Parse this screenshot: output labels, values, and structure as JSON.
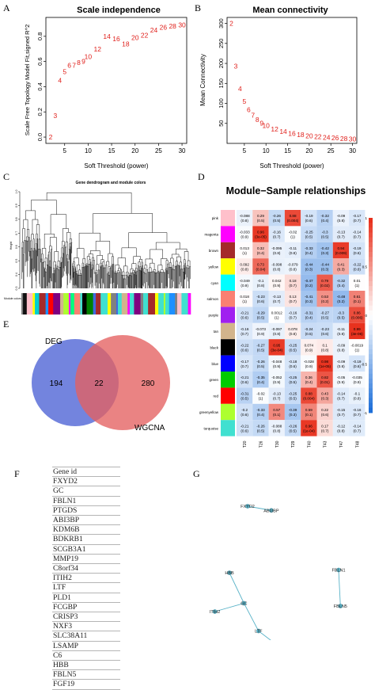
{
  "panel_letters": {
    "A": "A",
    "B": "B",
    "C": "C",
    "D": "D",
    "E": "E",
    "F": "F",
    "G": "G"
  },
  "chart_data": [
    {
      "panel": "A",
      "type": "scatter",
      "title": "Scale independence",
      "xlabel": "Soft Threshold (power)",
      "ylabel": "Scale Free Topology Model Fit,signed R^2",
      "xlim": [
        1,
        31
      ],
      "ylim": [
        -0.05,
        0.95
      ],
      "xticks": [
        5,
        10,
        15,
        20,
        25,
        30
      ],
      "yticks": [
        0.0,
        0.2,
        0.4,
        0.6,
        0.8
      ],
      "points": [
        {
          "x": 2,
          "y": 0.0,
          "label": "2"
        },
        {
          "x": 3,
          "y": 0.17,
          "label": "3"
        },
        {
          "x": 4,
          "y": 0.45,
          "label": "4"
        },
        {
          "x": 5,
          "y": 0.52,
          "label": "5"
        },
        {
          "x": 6,
          "y": 0.57,
          "label": "6"
        },
        {
          "x": 7,
          "y": 0.57,
          "label": "7"
        },
        {
          "x": 8,
          "y": 0.59,
          "label": "8"
        },
        {
          "x": 9,
          "y": 0.6,
          "label": "9"
        },
        {
          "x": 10,
          "y": 0.64,
          "label": "10"
        },
        {
          "x": 12,
          "y": 0.7,
          "label": "12"
        },
        {
          "x": 14,
          "y": 0.8,
          "label": "14"
        },
        {
          "x": 16,
          "y": 0.78,
          "label": "16"
        },
        {
          "x": 18,
          "y": 0.74,
          "label": "18"
        },
        {
          "x": 20,
          "y": 0.79,
          "label": "20"
        },
        {
          "x": 22,
          "y": 0.81,
          "label": "22"
        },
        {
          "x": 24,
          "y": 0.85,
          "label": "24"
        },
        {
          "x": 26,
          "y": 0.87,
          "label": "26"
        },
        {
          "x": 28,
          "y": 0.88,
          "label": "28"
        },
        {
          "x": 30,
          "y": 0.89,
          "label": "30"
        }
      ]
    },
    {
      "panel": "B",
      "type": "scatter",
      "title": "Mean connectivity",
      "xlabel": "Soft Threshold (power)",
      "ylabel": "Mean Connectivity",
      "xlim": [
        1,
        31
      ],
      "ylim": [
        0,
        315
      ],
      "xticks": [
        5,
        10,
        15,
        20,
        25,
        30
      ],
      "yticks": [
        50,
        100,
        150,
        200,
        250,
        300
      ],
      "points": [
        {
          "x": 2,
          "y": 300,
          "label": "2"
        },
        {
          "x": 3,
          "y": 193,
          "label": "3"
        },
        {
          "x": 4,
          "y": 137,
          "label": "4"
        },
        {
          "x": 5,
          "y": 105,
          "label": "5"
        },
        {
          "x": 6,
          "y": 84,
          "label": "6"
        },
        {
          "x": 7,
          "y": 70,
          "label": "7"
        },
        {
          "x": 8,
          "y": 59,
          "label": "8"
        },
        {
          "x": 9,
          "y": 51,
          "label": "9"
        },
        {
          "x": 10,
          "y": 45,
          "label": "10"
        },
        {
          "x": 12,
          "y": 36,
          "label": "12"
        },
        {
          "x": 14,
          "y": 30,
          "label": "14"
        },
        {
          "x": 16,
          "y": 25,
          "label": "16"
        },
        {
          "x": 18,
          "y": 22,
          "label": "18"
        },
        {
          "x": 20,
          "y": 19,
          "label": "20"
        },
        {
          "x": 22,
          "y": 17,
          "label": "22"
        },
        {
          "x": 24,
          "y": 15,
          "label": "24"
        },
        {
          "x": 26,
          "y": 14,
          "label": "26"
        },
        {
          "x": 28,
          "y": 12,
          "label": "28"
        },
        {
          "x": 30,
          "y": 11,
          "label": "30"
        }
      ]
    },
    {
      "panel": "C",
      "type": "dendrogram",
      "title": "Gene dendrogram and module colors",
      "ylabel": "Height",
      "color_bar_label": "Module colors",
      "yticks": [
        0.3,
        0.4,
        0.5,
        0.6,
        0.7,
        0.8,
        0.9,
        1.0
      ],
      "module_color_bar": [
        "#808080",
        "#111111",
        "#ffc0cb",
        "#ffff00",
        "#00ced1",
        "#a52a2a",
        "#1e90ff",
        "#ff0000",
        "#800080",
        "#d2b48c",
        "#adff2f",
        "#ff00ff",
        "#00ff7f",
        "#fa8072",
        "#40e0d0",
        "#000000",
        "#008000",
        "#4169e1",
        "#a52a2a",
        "#40e0d0",
        "#ffff00",
        "#808080",
        "#4169e1",
        "#40e0d0",
        "#d2b48c",
        "#ff00ff",
        "#40e0d0",
        "#800080",
        "#808080",
        "#40e0d0",
        "#a52a2a",
        "#ffff00",
        "#40e0d0",
        "#adff2f",
        "#40e0d0",
        "#1e90ff",
        "#808080",
        "#ffc0cb",
        "#40e0d0",
        "#ff00ff"
      ]
    },
    {
      "panel": "D",
      "type": "heatmap",
      "title": "Module−Sample relationships",
      "columns": [
        "T20",
        "T26",
        "T30",
        "T29",
        "T40",
        "T43",
        "T47",
        "T48"
      ],
      "rows": [
        "pink",
        "magenta",
        "brown",
        "yellow",
        "cyan",
        "salmon",
        "purple",
        "tan",
        "black",
        "blue",
        "green",
        "red",
        "greenyellow",
        "turquoise"
      ],
      "row_colors": [
        "#ffc0cb",
        "#ff00ff",
        "#a52a2a",
        "#ffff00",
        "#00ffff",
        "#fa8072",
        "#a020f0",
        "#d2b48c",
        "#000000",
        "#0000ff",
        "#00cc00",
        "#ff0000",
        "#adff2f",
        "#40e0d0"
      ],
      "values": [
        [
          "-0.088",
          "0.29",
          "-0.26",
          "0.88",
          "-0.19",
          "-0.32",
          "-0.09",
          "-0.17"
        ],
        [
          "-0.033",
          "0.96",
          "-0.16",
          "-0.02",
          "-0.25",
          "-0.3",
          "-0.13",
          "-0.14"
        ],
        [
          "0.013",
          "0.32",
          "-0.095",
          "-0.11",
          "-0.33",
          "-0.42",
          "0.94",
          "-0.19"
        ],
        [
          "0.092",
          "0.73",
          "-0.098",
          "-0.079",
          "-0.44",
          "-0.44",
          "0.41",
          "-0.22"
        ],
        [
          "-0.049",
          "-0.1",
          "0.042",
          "0.18",
          "-0.47",
          "0.79",
          "-0.32",
          "0.01"
        ],
        [
          "0.018",
          "-0.23",
          "-0.13",
          "0.13",
          "-0.41",
          "0.53",
          "-0.48",
          "0.61"
        ],
        [
          "-0.21",
          "-0.29",
          "0.0012",
          "-0.16",
          "-0.31",
          "-0.27",
          "-0.3",
          "0.86"
        ],
        [
          "-0.16",
          "-0.073",
          "-0.097",
          "0.078",
          "-0.24",
          "-0.23",
          "-0.11",
          "0.99"
        ],
        [
          "-0.22",
          "-0.27",
          "0.95",
          "-0.25",
          "0.074",
          "0.1",
          "-0.09",
          "-0.0019"
        ],
        [
          "-0.17",
          "-0.26",
          "-0.048",
          "-0.18",
          "-0.028",
          "0.98",
          "-0.09",
          "-0.19"
        ],
        [
          "-0.21",
          "-0.35",
          "-0.052",
          "-0.25",
          "0.36",
          "0.82",
          "-0.05",
          "-0.035"
        ],
        [
          "-0.31",
          "-0.02",
          "-0.13",
          "-0.25",
          "0.88",
          "0.43",
          "-0.14",
          "-0.1"
        ],
        [
          "-0.2",
          "-0.33",
          "0.57",
          "-0.39",
          "0.59",
          "0.22",
          "-0.15",
          "-0.16"
        ],
        [
          "-0.21",
          "-0.26",
          "-0.088",
          "-0.26",
          "0.96",
          "0.17",
          "-0.12",
          "-0.14"
        ]
      ],
      "pvalues": [
        [
          "(0.8)",
          "(0.5)",
          "(0.5)",
          "(0.004)",
          "(0.6)",
          "(0.4)",
          "(0.8)",
          "(0.7)"
        ],
        [
          "(0.9)",
          "(3e-05)",
          "(0.7)",
          "(1)",
          "(0.5)",
          "(0.5)",
          "(0.7)",
          "(0.7)"
        ],
        [
          "(1)",
          "(0.4)",
          "(0.8)",
          "(0.8)",
          "(0.4)",
          "(0.3)",
          "(0.009)",
          "(0.6)"
        ],
        [
          "(0.8)",
          "(0.04)",
          "(0.8)",
          "(0.8)",
          "(0.3)",
          "(0.3)",
          "(0.3)",
          "(0.6)"
        ],
        [
          "(0.9)",
          "(0.8)",
          "(0.9)",
          "(0.7)",
          "(0.2)",
          "(0.02)",
          "(0.4)",
          "(1)"
        ],
        [
          "(1)",
          "(0.6)",
          "(0.7)",
          "(0.7)",
          "(0.3)",
          "(0.2)",
          "(0.2)",
          "(0.1)"
        ],
        [
          "(0.6)",
          "(0.5)",
          "(1)",
          "(0.7)",
          "(0.4)",
          "(0.5)",
          "(0.5)",
          "(0.006)"
        ],
        [
          "(0.7)",
          "(0.9)",
          "(0.8)",
          "(0.8)",
          "(0.5)",
          "(0.6)",
          "(0.8)",
          "(3e-06)"
        ],
        [
          "(0.6)",
          "(0.5)",
          "(3e-04)",
          "(0.5)",
          "(0.9)",
          "(0.8)",
          "(0.8)",
          "(1)"
        ],
        [
          "(0.7)",
          "(0.5)",
          "(0.9)",
          "(0.6)",
          "(0.9)",
          "(1e-05)",
          "(0.8)",
          "(0.6)"
        ],
        [
          "(0.6)",
          "(0.4)",
          "(0.9)",
          "(0.5)",
          "(0.4)",
          "(0.01)",
          "(0.9)",
          "(0.9)"
        ],
        [
          "(0.5)",
          "(1)",
          "(0.7)",
          "(0.5)",
          "(0.004)",
          "(0.3)",
          "(0.7)",
          "(0.8)"
        ],
        [
          "(0.6)",
          "(0.4)",
          "(0.1)",
          "(0.3)",
          "(0.1)",
          "(0.6)",
          "(0.7)",
          "(0.7)"
        ],
        [
          "(0.6)",
          "(0.5)",
          "(0.8)",
          "(0.5)",
          "(1e-04)",
          "(0.7)",
          "(0.8)",
          "(0.7)"
        ]
      ],
      "colorbar_ticks": [
        "1",
        "0.5",
        "0",
        "-0.5",
        "-1"
      ],
      "color_scale": {
        "neg": "#1d6fd9",
        "mid": "#ffffff",
        "pos": "#e8301c"
      }
    },
    {
      "panel": "E",
      "type": "venn",
      "sets": [
        {
          "name": "DEG",
          "only": 194,
          "color": "#5b6fd8"
        },
        {
          "name": "WGCNA",
          "only": 280,
          "color": "#e46060"
        }
      ],
      "intersection": 22
    },
    {
      "panel": "F",
      "type": "table",
      "header": "Gene id",
      "rows": [
        "FXYD2",
        "GC",
        "FBLN1",
        "PTGDS",
        "ABI3BP",
        "KDM6B",
        "BDKRB1",
        "SCGB3A1",
        "MMP19",
        "C8orf34",
        "ITIH2",
        "LTF",
        "PLD1",
        "FCGBP",
        "CRISP3",
        "NXF3",
        "SLC38A11",
        "LSAMP",
        "C6",
        "HBB",
        "FBLN5",
        "FGF19"
      ]
    },
    {
      "panel": "G",
      "type": "network",
      "nodes": [
        {
          "id": "FXYD2",
          "x": 0.3,
          "y": 0.12
        },
        {
          "id": "ABI3BP",
          "x": 0.43,
          "y": 0.15
        },
        {
          "id": "HBB",
          "x": 0.2,
          "y": 0.6
        },
        {
          "id": "GC",
          "x": 0.28,
          "y": 0.82
        },
        {
          "id": "ITIH2",
          "x": 0.12,
          "y": 0.88
        },
        {
          "id": "LTF",
          "x": 0.36,
          "y": 1.02
        },
        {
          "id": "CRISP3",
          "x": 0.47,
          "y": 1.13
        },
        {
          "id": "FBLN1",
          "x": 0.8,
          "y": 0.58
        },
        {
          "id": "FBLN5",
          "x": 0.81,
          "y": 0.84
        }
      ],
      "edges": [
        [
          "FXYD2",
          "ABI3BP"
        ],
        [
          "HBB",
          "GC"
        ],
        [
          "ITIH2",
          "GC"
        ],
        [
          "GC",
          "LTF"
        ],
        [
          "LTF",
          "CRISP3"
        ],
        [
          "FBLN1",
          "FBLN5"
        ]
      ],
      "node_color": "#5ab3c8"
    }
  ]
}
